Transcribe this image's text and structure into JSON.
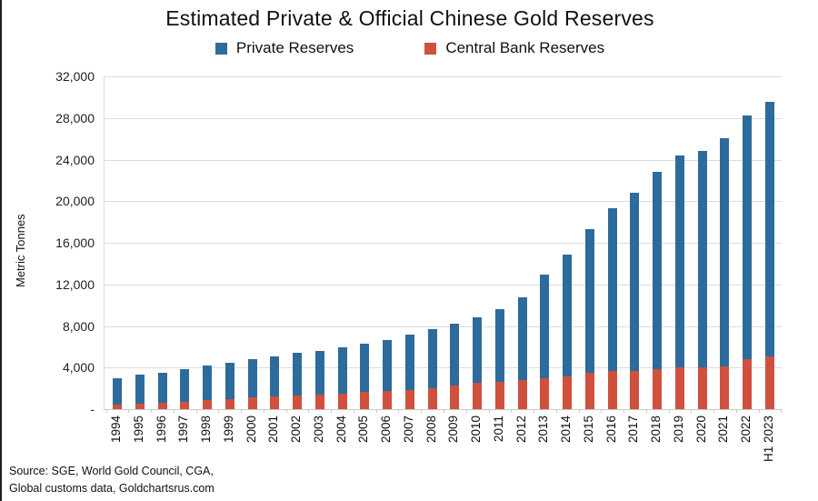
{
  "title": "Estimated Private & Official Chinese Gold Reserves",
  "legend": {
    "private_label": "Private Reserves",
    "central_bank_label": "Central Bank Reserves"
  },
  "y_axis": {
    "title": "Metric Tonnes",
    "tick_labels": [
      "32,000",
      "28,000",
      "24,000",
      "20,000",
      "16,000",
      "12,000",
      "8,000",
      "4,000",
      "-"
    ],
    "tick_values": [
      32000,
      28000,
      24000,
      20000,
      16000,
      12000,
      8000,
      4000,
      0
    ]
  },
  "source": {
    "line1": "Source: SGE, World Gold Council, CGA,",
    "line2": "Global customs data, Goldchartsrus.com"
  },
  "colors": {
    "private": "#2c6b9b",
    "central_bank": "#d0503e",
    "gridline": "#dcdcdc",
    "axis": "#c9c9c9"
  },
  "chart_data": {
    "type": "bar",
    "stacked": true,
    "title": "Estimated Private & Official Chinese Gold Reserves",
    "xlabel": "",
    "ylabel": "Metric Tonnes",
    "ylim": [
      0,
      32000
    ],
    "y_tick_step": 4000,
    "grid": "horizontal",
    "legend_position": "top",
    "categories": [
      "1994",
      "1995",
      "1996",
      "1997",
      "1998",
      "1999",
      "2000",
      "2001",
      "2002",
      "2003",
      "2004",
      "2005",
      "2006",
      "2007",
      "2008",
      "2009",
      "2010",
      "2011",
      "2012",
      "2013",
      "2014",
      "2015",
      "2016",
      "2017",
      "2018",
      "2019",
      "2020",
      "2021",
      "2022",
      "H1 2023"
    ],
    "series": [
      {
        "name": "Central Bank Reserves",
        "color": "#d0503e",
        "values": [
          450,
          550,
          650,
          740,
          860,
          980,
          1120,
          1240,
          1330,
          1440,
          1530,
          1650,
          1770,
          1880,
          2030,
          2260,
          2500,
          2610,
          2820,
          2960,
          3190,
          3480,
          3700,
          3720,
          3830,
          4000,
          4040,
          4120,
          4790,
          5060
        ]
      },
      {
        "name": "Private Reserves",
        "color": "#2c6b9b",
        "values": [
          2550,
          2780,
          2890,
          3090,
          3340,
          3480,
          3670,
          3870,
          4060,
          4190,
          4450,
          4680,
          4910,
          5300,
          5640,
          5940,
          6300,
          6980,
          7950,
          9990,
          11670,
          13840,
          15590,
          17080,
          19010,
          20370,
          20830,
          21910,
          23470,
          24480
        ]
      }
    ],
    "totals": [
      3000,
      3330,
      3540,
      3830,
      4200,
      4460,
      4790,
      5110,
      5390,
      5630,
      5980,
      6330,
      6680,
      7180,
      7670,
      8200,
      8800,
      9590,
      10770,
      12950,
      14860,
      17320,
      19290,
      20800,
      22840,
      24370,
      24870,
      26030,
      28260,
      29540
    ]
  }
}
